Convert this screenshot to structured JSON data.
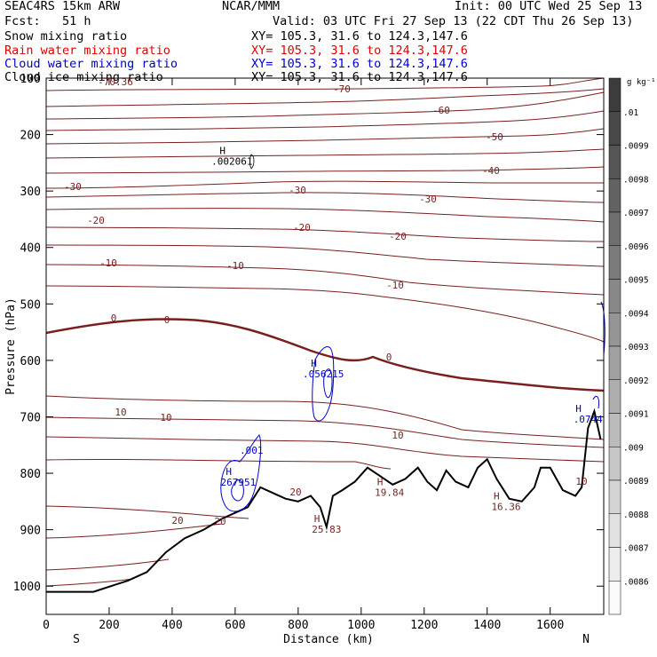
{
  "header": {
    "model": "SEAC4RS 15km ARW",
    "center": "NCAR/MMM",
    "init": "Init: 00 UTC Wed 25 Sep 13",
    "fcst": "Fcst:   51 h",
    "valid": "Valid: 03 UTC Fri 27 Sep 13 (22 CDT Thu 26 Sep 13)"
  },
  "fields": [
    {
      "name": "Snow mixing ratio",
      "xy": "XY= 105.3, 31.6 to 124.3,147.6",
      "color": "#000000"
    },
    {
      "name": "Rain water mixing ratio",
      "xy": "XY= 105.3, 31.6 to 124.3,147.6",
      "color": "#e00000"
    },
    {
      "name": "Cloud water mixing ratio",
      "xy": "XY= 105.3, 31.6 to 124.3,147.6",
      "color": "#0000d0"
    },
    {
      "name": "Cloud ice mixing ratio",
      "xy": "XY= 105.3, 31.6 to 124.3,147.6",
      "color": "#000000"
    }
  ],
  "chart_data": {
    "type": "contour cross-section",
    "xlabel": "Distance (km)",
    "ylabel": "Pressure (hPa)",
    "xlim": [
      0,
      1770
    ],
    "ylim": [
      1050,
      100
    ],
    "xticks": [
      0,
      200,
      400,
      600,
      800,
      1000,
      1200,
      1400,
      1600
    ],
    "yticks": [
      100,
      200,
      300,
      400,
      500,
      600,
      700,
      800,
      900,
      1000
    ],
    "x_end_labels": {
      "left": "S",
      "right": "N"
    },
    "colorbar": {
      "unit": "g kg⁻¹",
      "levels": [
        ".01",
        ".0099",
        ".0098",
        ".0097",
        ".0096",
        ".0095",
        ".0094",
        ".0093",
        ".0092",
        ".0091",
        ".009",
        ".0089",
        ".0088",
        ".0087",
        ".0086"
      ]
    },
    "temperature_contours": [
      {
        "label": "-70.36"
      },
      {
        "label": "-70"
      },
      {
        "label": "-60"
      },
      {
        "label": "-50"
      },
      {
        "label": "-40"
      },
      {
        "label": "-30"
      },
      {
        "label": "-20"
      },
      {
        "label": "-10"
      },
      {
        "label": "0"
      },
      {
        "label": "10"
      },
      {
        "label": "20"
      }
    ],
    "extrema": [
      {
        "type": "H",
        "value": ".002061",
        "x": 590,
        "p": 253
      },
      {
        "type": "H",
        "value": ".056215",
        "x": 880,
        "p": 630
      },
      {
        "type": "H",
        "value": ".0744",
        "x": 1720,
        "p": 710
      },
      {
        "type": "H",
        "value": "267951",
        "x": 610,
        "p": 822
      },
      {
        "type": "H",
        "value": "19.84",
        "x": 1090,
        "p": 840
      },
      {
        "type": "H",
        "value": "16.36",
        "x": 1460,
        "p": 865
      },
      {
        "type": "H",
        "value": "25.83",
        "x": 890,
        "p": 905
      }
    ],
    "cloud_water_labels": [
      ".001"
    ],
    "terrain": [
      [
        0,
        1010
      ],
      [
        150,
        1010
      ],
      [
        260,
        990
      ],
      [
        320,
        975
      ],
      [
        380,
        940
      ],
      [
        440,
        915
      ],
      [
        500,
        900
      ],
      [
        560,
        880
      ],
      [
        600,
        870
      ],
      [
        640,
        860
      ],
      [
        680,
        825
      ],
      [
        720,
        835
      ],
      [
        760,
        845
      ],
      [
        800,
        850
      ],
      [
        840,
        840
      ],
      [
        870,
        860
      ],
      [
        890,
        895
      ],
      [
        910,
        840
      ],
      [
        940,
        830
      ],
      [
        980,
        815
      ],
      [
        1020,
        790
      ],
      [
        1060,
        805
      ],
      [
        1100,
        820
      ],
      [
        1140,
        810
      ],
      [
        1180,
        790
      ],
      [
        1210,
        815
      ],
      [
        1240,
        830
      ],
      [
        1270,
        795
      ],
      [
        1300,
        815
      ],
      [
        1340,
        825
      ],
      [
        1370,
        790
      ],
      [
        1400,
        775
      ],
      [
        1430,
        810
      ],
      [
        1470,
        845
      ],
      [
        1510,
        850
      ],
      [
        1550,
        825
      ],
      [
        1570,
        790
      ],
      [
        1600,
        790
      ],
      [
        1640,
        830
      ],
      [
        1680,
        840
      ],
      [
        1700,
        825
      ],
      [
        1720,
        720
      ],
      [
        1740,
        690
      ],
      [
        1760,
        740
      ]
    ]
  }
}
